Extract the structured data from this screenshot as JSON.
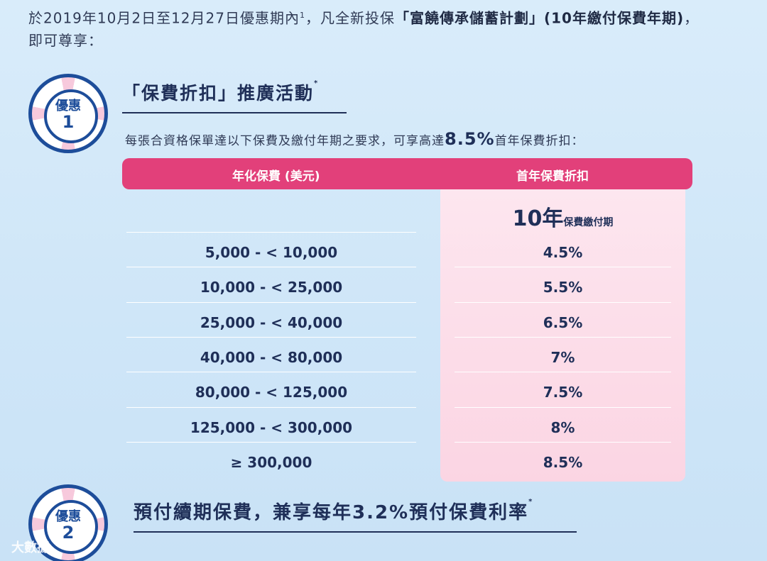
{
  "intro": {
    "line1_prefix": "於2019年10月2日至12月27日優惠期內",
    "line1_sup": "1",
    "line1_mid": "，凡全新投保",
    "plan_name": "「富饒傳承儲蓄計劃」(10年繳付保費年期)",
    "line1_end": "，",
    "line2": "即可尊享："
  },
  "offer1": {
    "badge_word": "優惠",
    "badge_num": "1",
    "title": "「保費折扣」推廣活動",
    "title_sup": "*",
    "subtitle_prefix": "每張合資格保單達以下保費及繳付年期之要求，可享高達",
    "subtitle_highlight": "8.5%",
    "subtitle_suffix": "首年保費折扣："
  },
  "table": {
    "header_left": "年化保費 (美元)",
    "header_right": "首年保費折扣",
    "col_sub_big": "10年",
    "col_sub_small": "保費繳付期",
    "rows": [
      {
        "range": "5,000 - < 10,000",
        "discount": "4.5%"
      },
      {
        "range": "10,000 - < 25,000",
        "discount": "5.5%"
      },
      {
        "range": "25,000 - < 40,000",
        "discount": "6.5%"
      },
      {
        "range": "40,000 - < 80,000",
        "discount": "7%"
      },
      {
        "range": "80,000 - < 125,000",
        "discount": "7.5%"
      },
      {
        "range": "125,000 - <  300,000",
        "discount": "8%"
      },
      {
        "range": "≥ 300,000",
        "discount": "8.5%"
      }
    ]
  },
  "offer2": {
    "badge_word": "優惠",
    "badge_num": "2",
    "title": "預付續期保費，兼享每年3.2%預付保費利率",
    "title_sup": "*"
  },
  "watermark": "大數據"
}
